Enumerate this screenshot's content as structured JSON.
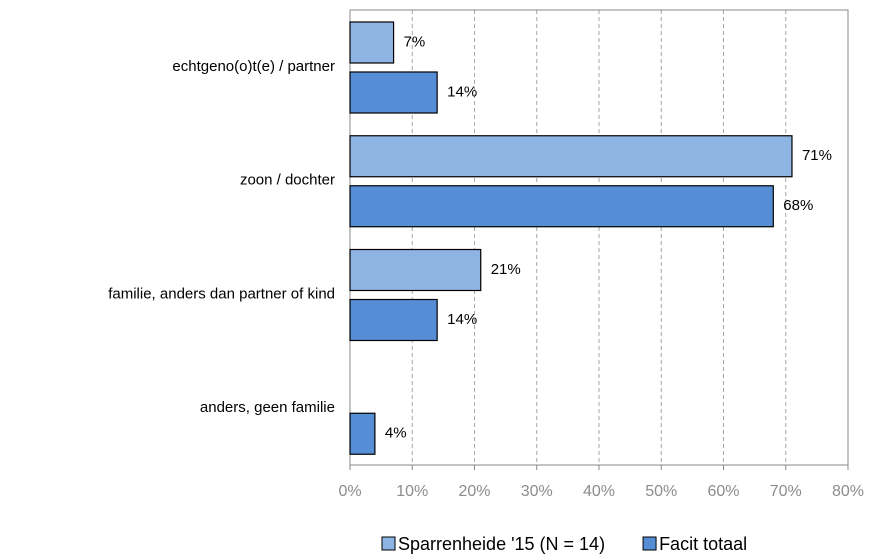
{
  "chart_data": {
    "type": "hbar",
    "categories": [
      "echtgeno(o)t(e) / partner",
      "zoon / dochter",
      "familie, anders dan partner of kind",
      "anders, geen familie"
    ],
    "series": [
      {
        "name": "Sparrenheide '15 (N = 14)",
        "color": "#8db4e2",
        "values": [
          7,
          71,
          21,
          null
        ],
        "value_labels": [
          "7%",
          "71%",
          "21%",
          null
        ]
      },
      {
        "name": "Facit totaal",
        "color": "#558ed5",
        "values": [
          14,
          68,
          14,
          4
        ],
        "value_labels": [
          "14%",
          "68%",
          "14%",
          "4%"
        ]
      }
    ],
    "xlim": [
      0,
      80
    ],
    "xticks": [
      {
        "value": 0,
        "label": "0%"
      },
      {
        "value": 10,
        "label": "10%"
      },
      {
        "value": 20,
        "label": "20%"
      },
      {
        "value": 30,
        "label": "30%"
      },
      {
        "value": 40,
        "label": "40%"
      },
      {
        "value": 50,
        "label": "50%"
      },
      {
        "value": 60,
        "label": "60%"
      },
      {
        "value": 70,
        "label": "70%"
      },
      {
        "value": 80,
        "label": "80%"
      }
    ],
    "grid": true,
    "legend": "bottom"
  }
}
